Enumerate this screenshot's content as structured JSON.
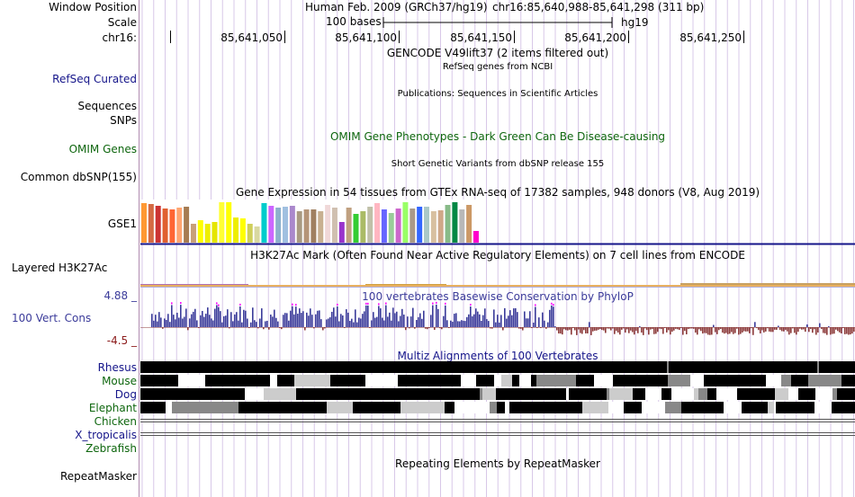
{
  "header": {
    "window_position_label": "Window Position",
    "assembly": "Human Feb. 2009 (GRCh37/hg19)",
    "position": "chr16:85,640,988-85,641,298 (311 bp)",
    "scale_label": "Scale",
    "scale_text": "100 bases",
    "scale_db": "hg19",
    "chrom_label": "chr16:",
    "ticks": [
      "85,641,050",
      "85,641,100",
      "85,641,150",
      "85,641,200",
      "85,641,250"
    ]
  },
  "tracks": {
    "gencode": {
      "title": "GENCODE V49lift37 (2 items filtered out)"
    },
    "refseq": {
      "label": "RefSeq Curated",
      "title": "RefSeq genes from NCBI"
    },
    "publications": {
      "title": "Publications: Sequences in Scientific Articles"
    },
    "sequences": {
      "label": "Sequences"
    },
    "snps": {
      "label": "SNPs"
    },
    "omim": {
      "label": "OMIM Genes",
      "title": "OMIM Gene Phenotypes - Dark Green Can Be Disease-causing"
    },
    "dbsnp": {
      "label": "Common dbSNP(155)",
      "title": "Short Genetic Variants from dbSNP release 155"
    },
    "gtex": {
      "title": "Gene Expression in 54 tissues from GTEx RNA-seq of 17382 samples, 948 donors (V8, Aug 2019)",
      "gene_label": "GSE1",
      "colors": [
        "#ff9933",
        "#d46a43",
        "#cc3333",
        "#e06030",
        "#ff6633",
        "#ffa570",
        "#a67c52",
        "#c8a078",
        "#ffff00",
        "#eeee00",
        "#e5e500",
        "#ffff33",
        "#ffff00",
        "#eeee00",
        "#ffff00",
        "#cfcf5a",
        "#d8d8a0",
        "#00cccc",
        "#cc66ff",
        "#8cb0cc",
        "#a0c0e0",
        "#aa88cc",
        "#a99a82",
        "#b59478",
        "#a08060",
        "#c8b090",
        "#f0d8d8",
        "#d0c0b0",
        "#9933cc",
        "#c0a080",
        "#33cc33",
        "#aabb66",
        "#c0c0a8",
        "#ffb6c1",
        "#6666ff",
        "#99cc99",
        "#cc66cc",
        "#99ff66",
        "#aa9988",
        "#3366ff",
        "#aac8c8",
        "#d8c0a0",
        "#cfa888",
        "#88bb88",
        "#008844",
        "#b8b8b8",
        "#cc9966",
        "#ff00cc"
      ],
      "values": [
        0.95,
        0.93,
        0.9,
        0.82,
        0.8,
        0.85,
        0.88,
        0.45,
        0.55,
        0.45,
        0.5,
        0.98,
        0.98,
        0.6,
        0.58,
        0.45,
        0.4,
        0.95,
        0.9,
        0.85,
        0.88,
        0.9,
        0.75,
        0.8,
        0.8,
        0.75,
        0.92,
        0.85,
        0.5,
        0.85,
        0.7,
        0.75,
        0.88,
        0.95,
        0.8,
        0.72,
        0.83,
        0.98,
        0.82,
        0.88,
        0.88,
        0.75,
        0.78,
        0.92,
        0.98,
        0.8,
        0.92,
        0.28
      ]
    },
    "h3k27ac": {
      "label": "Layered H3K27Ac",
      "title": "H3K27Ac Mark (Often Found Near Active Regulatory Elements) on 7 cell lines from ENCODE"
    },
    "phylop": {
      "label": "100 Vert. Cons",
      "max_label": "4.88 _",
      "min_label": "-4.5 _",
      "title": "100 vertebrates Basewise Conservation by PhyloP",
      "y_max": 4.88,
      "y_min": -4.5,
      "seed": 7
    },
    "multiz": {
      "title": "Multiz Alignments of 100 Vertebrates",
      "species": [
        {
          "name": "Rhesus",
          "color": "#15158a",
          "kind": "solid"
        },
        {
          "name": "Mouse",
          "color": "#0e660e",
          "kind": "mixed"
        },
        {
          "name": "Dog",
          "color": "#15158a",
          "kind": "mixed"
        },
        {
          "name": "Elephant",
          "color": "#0e660e",
          "kind": "mixed"
        },
        {
          "name": "Chicken",
          "color": "#0e660e",
          "kind": "lines"
        },
        {
          "name": "X_tropicalis",
          "color": "#15158a",
          "kind": "lines"
        },
        {
          "name": "Zebrafish",
          "color": "#0e660e",
          "kind": "lines"
        }
      ]
    },
    "repeatmasker": {
      "label": "RepeatMasker",
      "title": "Repeating Elements by RepeatMasker"
    }
  }
}
